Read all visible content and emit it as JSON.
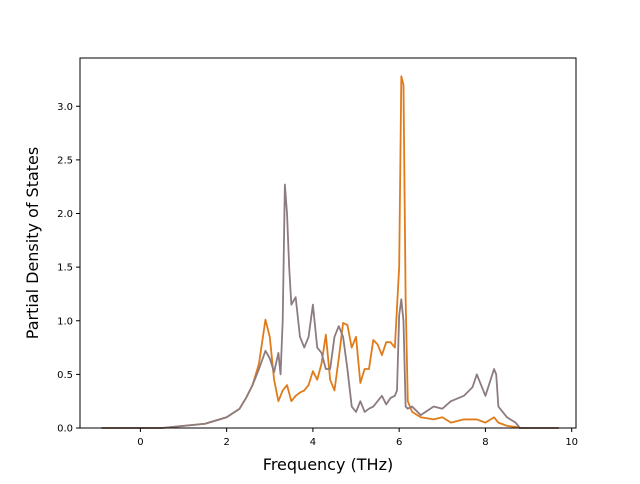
{
  "chart_data": {
    "type": "line",
    "title": "",
    "xlabel": "Frequency (THz)",
    "ylabel": "Partial Density of States",
    "xlim": [
      -1.4,
      10.1
    ],
    "ylim": [
      0.0,
      3.45
    ],
    "xticks": [
      0,
      2,
      4,
      6,
      8,
      10
    ],
    "yticks": [
      0.0,
      0.5,
      1.0,
      1.5,
      2.0,
      2.5,
      3.0
    ],
    "grid": false,
    "legend": "none",
    "series": [
      {
        "color": "#e07b1a",
        "x": [
          -0.9,
          0.0,
          0.5,
          1.0,
          1.5,
          2.0,
          2.3,
          2.45,
          2.6,
          2.75,
          2.9,
          3.0,
          3.1,
          3.2,
          3.3,
          3.4,
          3.5,
          3.6,
          3.7,
          3.8,
          3.9,
          4.0,
          4.1,
          4.2,
          4.3,
          4.4,
          4.5,
          4.6,
          4.7,
          4.8,
          4.9,
          5.0,
          5.1,
          5.2,
          5.3,
          5.4,
          5.5,
          5.6,
          5.7,
          5.8,
          5.9,
          6.0,
          6.05,
          6.1,
          6.15,
          6.2,
          6.3,
          6.5,
          6.8,
          7.0,
          7.2,
          7.5,
          7.8,
          8.0,
          8.2,
          8.3,
          8.5,
          8.7,
          8.8,
          9.0,
          9.7
        ],
        "values": [
          0.0,
          0.0,
          0.0,
          0.02,
          0.04,
          0.1,
          0.18,
          0.28,
          0.4,
          0.6,
          1.01,
          0.85,
          0.45,
          0.25,
          0.35,
          0.4,
          0.25,
          0.3,
          0.33,
          0.35,
          0.4,
          0.53,
          0.45,
          0.6,
          0.87,
          0.45,
          0.35,
          0.65,
          0.98,
          0.96,
          0.75,
          0.85,
          0.42,
          0.55,
          0.55,
          0.82,
          0.78,
          0.68,
          0.8,
          0.8,
          0.75,
          1.5,
          3.28,
          3.2,
          1.2,
          0.25,
          0.15,
          0.1,
          0.08,
          0.1,
          0.05,
          0.08,
          0.08,
          0.05,
          0.1,
          0.05,
          0.02,
          0.01,
          0.0,
          0.0,
          0.0
        ]
      },
      {
        "color": "#8c7b80",
        "x": [
          -0.9,
          0.0,
          0.5,
          1.0,
          1.5,
          2.0,
          2.3,
          2.45,
          2.6,
          2.75,
          2.9,
          3.0,
          3.1,
          3.2,
          3.25,
          3.3,
          3.35,
          3.4,
          3.45,
          3.5,
          3.6,
          3.7,
          3.8,
          3.9,
          4.0,
          4.1,
          4.2,
          4.3,
          4.4,
          4.5,
          4.6,
          4.7,
          4.8,
          4.9,
          5.0,
          5.1,
          5.2,
          5.3,
          5.4,
          5.5,
          5.6,
          5.7,
          5.8,
          5.9,
          5.95,
          6.0,
          6.05,
          6.1,
          6.15,
          6.2,
          6.3,
          6.5,
          6.8,
          7.0,
          7.2,
          7.5,
          7.7,
          7.8,
          8.0,
          8.2,
          8.25,
          8.3,
          8.5,
          8.7,
          8.8,
          9.0,
          9.7
        ],
        "values": [
          0.0,
          0.0,
          0.0,
          0.02,
          0.04,
          0.1,
          0.18,
          0.28,
          0.4,
          0.55,
          0.72,
          0.65,
          0.52,
          0.7,
          0.5,
          1.0,
          2.27,
          2.0,
          1.5,
          1.15,
          1.22,
          0.85,
          0.75,
          0.85,
          1.15,
          0.75,
          0.7,
          0.55,
          0.55,
          0.85,
          0.95,
          0.85,
          0.55,
          0.2,
          0.15,
          0.25,
          0.15,
          0.18,
          0.2,
          0.25,
          0.3,
          0.22,
          0.28,
          0.3,
          0.35,
          1.05,
          1.2,
          1.0,
          0.2,
          0.18,
          0.2,
          0.12,
          0.2,
          0.18,
          0.25,
          0.3,
          0.38,
          0.5,
          0.3,
          0.55,
          0.5,
          0.2,
          0.1,
          0.05,
          0.0,
          0.0,
          0.0
        ]
      }
    ]
  }
}
